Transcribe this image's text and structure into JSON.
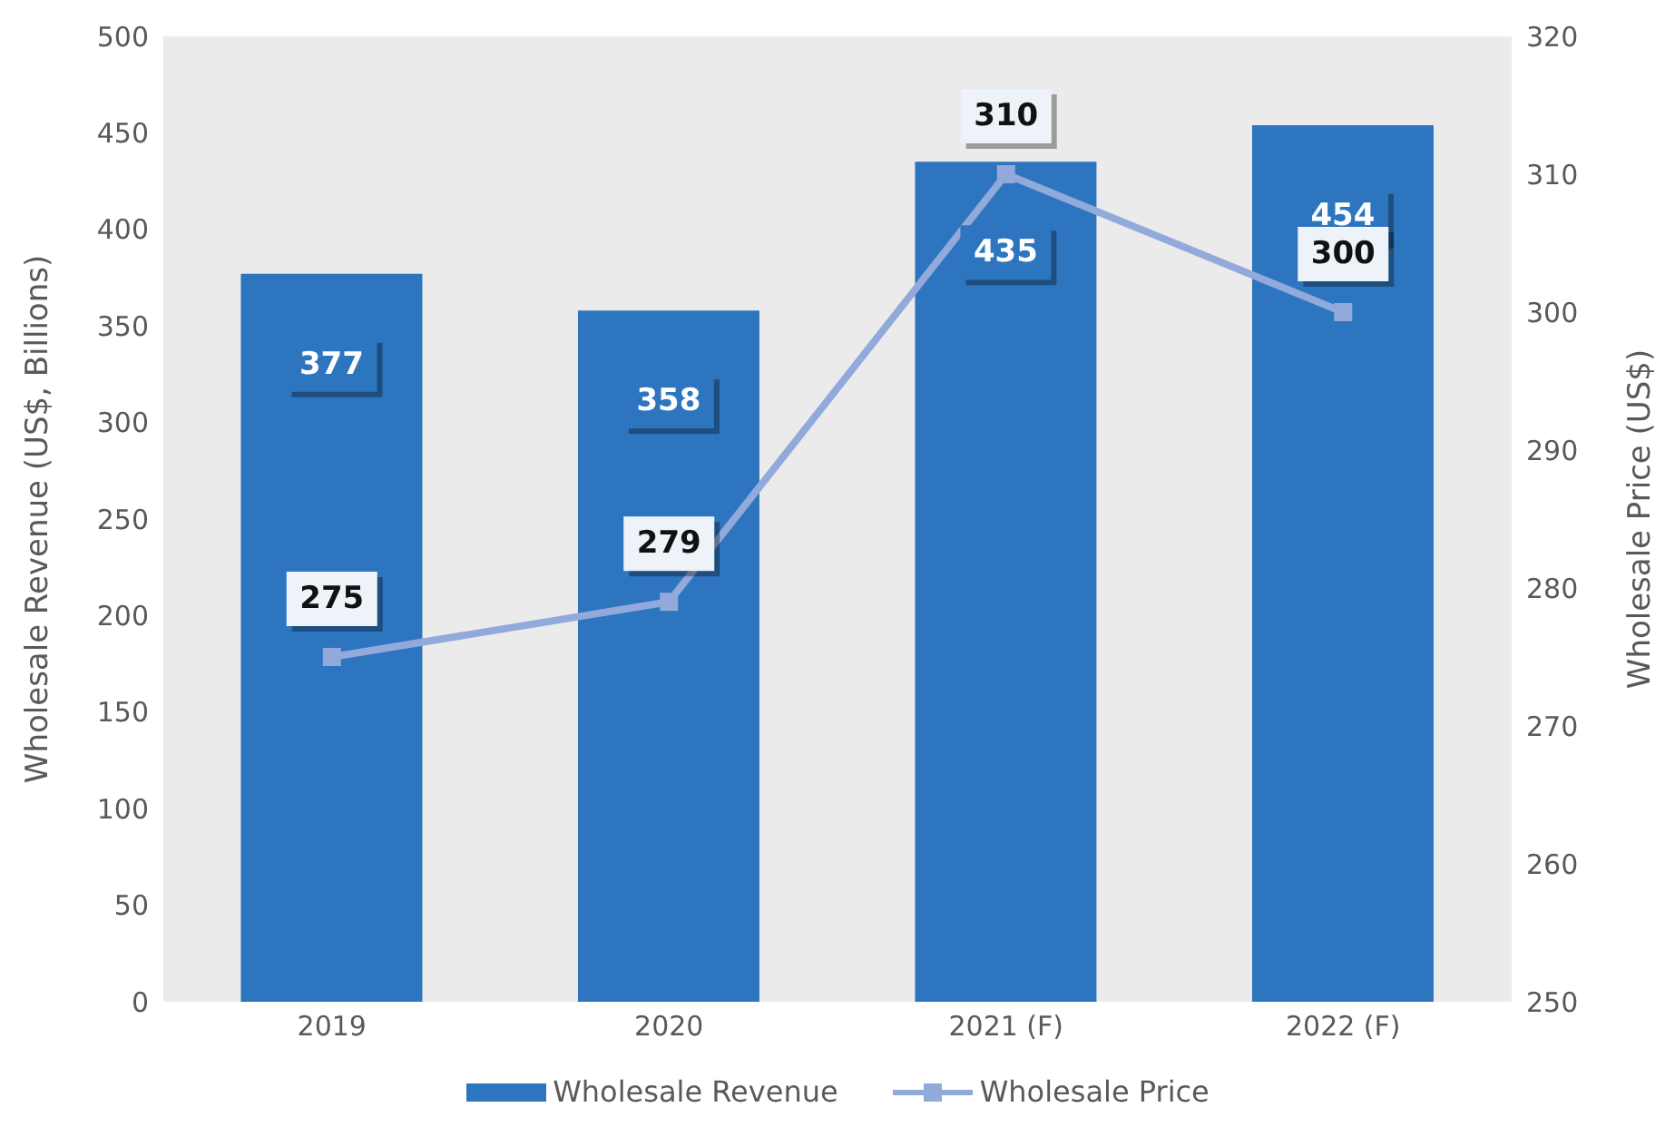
{
  "chart_data": {
    "type": "bar",
    "categories": [
      "2019",
      "2020",
      "2021 (F)",
      "2022 (F)"
    ],
    "ylabel": "Wholesale Revenue (US$, Billions)",
    "y2label": "Wholesale Price (US$)",
    "ylim": [
      0,
      500
    ],
    "yticks": [
      0,
      50,
      100,
      150,
      200,
      250,
      300,
      350,
      400,
      450,
      500
    ],
    "y2lim": [
      250,
      320
    ],
    "y2ticks": [
      250,
      260,
      270,
      280,
      290,
      300,
      310,
      320
    ],
    "series": [
      {
        "name": "Wholesale Revenue",
        "color": "#2e75c0",
        "values": [
          377,
          358,
          435,
          454
        ]
      },
      {
        "name": "Wholesale Price",
        "type": "line",
        "axis": "y2",
        "color": "#91a9db",
        "values": [
          275,
          279,
          310,
          300
        ],
        "marker": "square"
      }
    ],
    "data_labels": true,
    "legend": "bottom"
  }
}
